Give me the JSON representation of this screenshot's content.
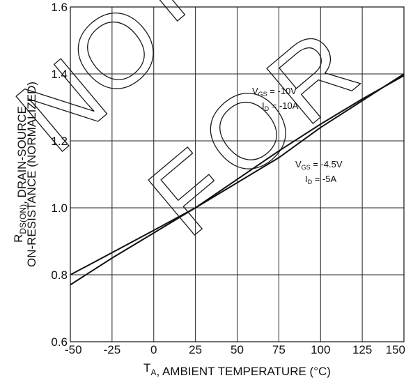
{
  "chart_data": {
    "type": "line",
    "title": "",
    "xlabel": "T_A, AMBIENT TEMPERATURE (°C)",
    "ylabel_line1": "R_DS(ON), DRAIN-SOURCE",
    "ylabel_line2": "ON-RESISTANCE (NORMALIZED)",
    "xlim": [
      -50,
      150
    ],
    "ylim": [
      0.6,
      1.6
    ],
    "x_ticks": [
      -50,
      -25,
      0,
      25,
      50,
      75,
      100,
      125,
      150
    ],
    "y_ticks": [
      0.6,
      0.8,
      1.0,
      1.2,
      1.4,
      1.6
    ],
    "grid": true,
    "series": [
      {
        "x": [
          -50,
          -25,
          0,
          25,
          50,
          75,
          100,
          125,
          150
        ],
        "y": [
          0.8,
          0.866,
          0.933,
          1.0,
          1.075,
          1.15,
          1.24,
          1.32,
          1.4
        ],
        "annotation": {
          "vgs": "-10V",
          "id": "-10A"
        }
      },
      {
        "x": [
          -50,
          -25,
          0,
          25,
          50,
          75,
          100,
          125,
          150
        ],
        "y": [
          0.77,
          0.85,
          0.925,
          1.0,
          1.085,
          1.17,
          1.25,
          1.325,
          1.395
        ],
        "annotation": {
          "vgs": "-4.5V",
          "id": "-5A"
        }
      }
    ]
  },
  "watermark": [
    "N",
    "O",
    "T",
    "F",
    "O",
    "R"
  ]
}
